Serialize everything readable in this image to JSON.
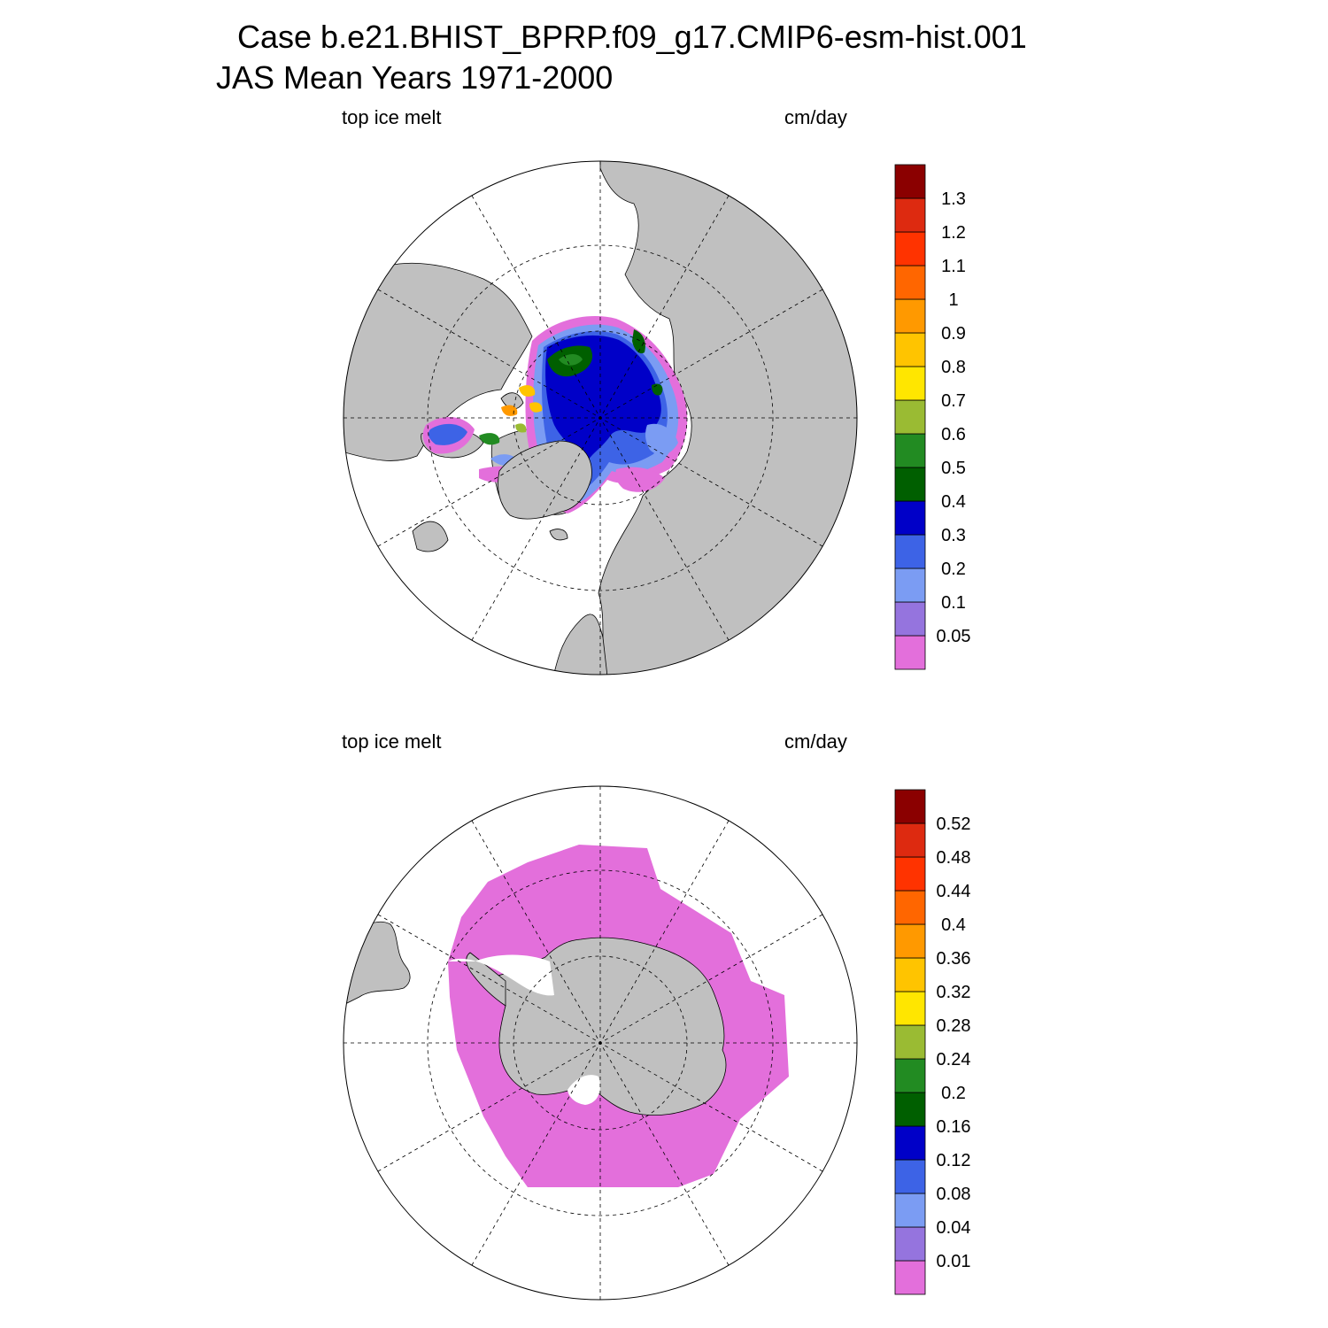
{
  "title": {
    "line1": "Case b.e21.BHIST_BPRP.f09_g17.CMIP6-esm-hist.001",
    "line2": "JAS Mean   Years 1971-2000"
  },
  "chart_data": [
    {
      "type": "heatmap",
      "hemisphere": "north",
      "projection": "polar stereographic",
      "left_label": "top ice melt",
      "right_label": "cm/day",
      "colorbar": {
        "levels": [
          "0.05",
          "0.1",
          "0.2",
          "0.3",
          "0.4",
          "0.5",
          "0.6",
          "0.7",
          "0.8",
          "0.9",
          "1",
          "1.1",
          "1.2",
          "1.3"
        ],
        "colors": [
          "#e36fdb",
          "#9574de",
          "#7b9cf3",
          "#3d63e6",
          "#0000c8",
          "#005f00",
          "#228b22",
          "#9abb33",
          "#ffe600",
          "#ffc400",
          "#ff9900",
          "#ff6600",
          "#ff3300",
          "#dd2a10",
          "#8b0000"
        ]
      },
      "colors": {
        "land": "#c0c0c0",
        "ocean": "#ffffff"
      }
    },
    {
      "type": "heatmap",
      "hemisphere": "south",
      "projection": "polar stereographic",
      "left_label": "top ice melt",
      "right_label": "cm/day",
      "colorbar": {
        "levels": [
          "0.01",
          "0.04",
          "0.08",
          "0.12",
          "0.16",
          "0.2",
          "0.24",
          "0.28",
          "0.32",
          "0.36",
          "0.4",
          "0.44",
          "0.48",
          "0.52"
        ],
        "colors": [
          "#e36fdb",
          "#9574de",
          "#7b9cf3",
          "#3d63e6",
          "#0000c8",
          "#005f00",
          "#228b22",
          "#9abb33",
          "#ffe600",
          "#ffc400",
          "#ff9900",
          "#ff6600",
          "#ff3300",
          "#dd2a10",
          "#8b0000"
        ]
      },
      "colors": {
        "land": "#c0c0c0",
        "ocean": "#ffffff"
      }
    }
  ]
}
